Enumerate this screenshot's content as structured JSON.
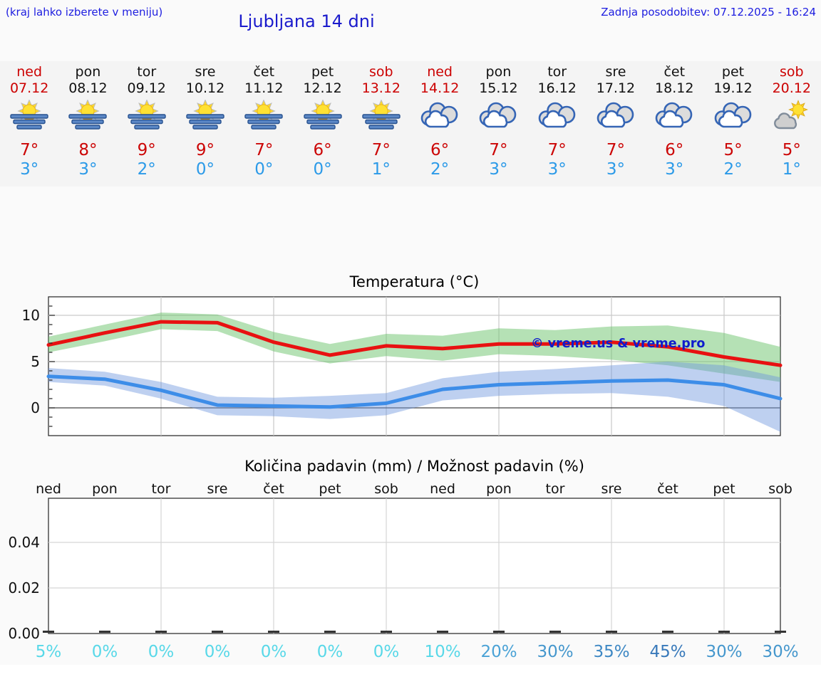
{
  "header": {
    "hint": "(kraj lahko izberete v meniju)",
    "title": "Ljubljana 14 dni",
    "updated": "Zadnja posodobitev: 07.12.2025 - 16:24"
  },
  "colors": {
    "weekend_red": "#cc0000",
    "weekday_black": "#111111",
    "high_temp": "#cc0606",
    "low_temp": "#2b9ae8",
    "watermark_blue": "#0f1ccc"
  },
  "days": [
    {
      "name": "ned",
      "date": "07.12",
      "icon": "sun-fog",
      "high": "7°",
      "low": "3°",
      "accent": "#cc0000"
    },
    {
      "name": "pon",
      "date": "08.12",
      "icon": "sun-fog",
      "high": "8°",
      "low": "3°",
      "accent": "#111111"
    },
    {
      "name": "tor",
      "date": "09.12",
      "icon": "sun-fog",
      "high": "9°",
      "low": "2°",
      "accent": "#111111"
    },
    {
      "name": "sre",
      "date": "10.12",
      "icon": "sun-fog",
      "high": "9°",
      "low": "0°",
      "accent": "#111111"
    },
    {
      "name": "čet",
      "date": "11.12",
      "icon": "sun-fog",
      "high": "7°",
      "low": "0°",
      "accent": "#111111"
    },
    {
      "name": "pet",
      "date": "12.12",
      "icon": "sun-fog",
      "high": "6°",
      "low": "0°",
      "accent": "#111111"
    },
    {
      "name": "sob",
      "date": "13.12",
      "icon": "sun-fog",
      "high": "7°",
      "low": "1°",
      "accent": "#cc0000"
    },
    {
      "name": "ned",
      "date": "14.12",
      "icon": "cloudy",
      "high": "6°",
      "low": "2°",
      "accent": "#cc0000"
    },
    {
      "name": "pon",
      "date": "15.12",
      "icon": "cloudy",
      "high": "7°",
      "low": "3°",
      "accent": "#111111"
    },
    {
      "name": "tor",
      "date": "16.12",
      "icon": "cloudy",
      "high": "7°",
      "low": "3°",
      "accent": "#111111"
    },
    {
      "name": "sre",
      "date": "17.12",
      "icon": "cloudy",
      "high": "7°",
      "low": "3°",
      "accent": "#111111"
    },
    {
      "name": "čet",
      "date": "18.12",
      "icon": "cloudy",
      "high": "6°",
      "low": "3°",
      "accent": "#111111"
    },
    {
      "name": "pet",
      "date": "19.12",
      "icon": "cloudy",
      "high": "5°",
      "low": "2°",
      "accent": "#111111"
    },
    {
      "name": "sob",
      "date": "20.12",
      "icon": "sun-cloud",
      "high": "5°",
      "low": "1°",
      "accent": "#cc0000"
    }
  ],
  "chart_data": [
    {
      "type": "line",
      "title": "Temperatura (°C)",
      "ylabel": "°C",
      "ylim": [
        -3,
        12
      ],
      "y_ticks": [
        0,
        5,
        10
      ],
      "x_count": 14,
      "grid_day_indexes": [
        3,
        5,
        7,
        9,
        11,
        13
      ],
      "legend_position": "none",
      "grid": true,
      "watermark": "© vreme.us & vreme.pro",
      "series": [
        {
          "name": "max-temperature",
          "line_color": "#e81111",
          "band_color": "#6cc46c",
          "values": [
            6.8,
            8.1,
            9.3,
            9.2,
            7.1,
            5.7,
            6.7,
            6.4,
            6.9,
            6.9,
            7.1,
            6.6,
            5.5,
            4.6
          ],
          "band_hi": [
            7.7,
            9.0,
            10.3,
            10.1,
            8.2,
            6.9,
            8.0,
            7.8,
            8.6,
            8.4,
            8.8,
            8.9,
            8.1,
            6.6
          ],
          "band_lo": [
            6.0,
            7.2,
            8.5,
            8.3,
            6.1,
            4.8,
            5.6,
            5.1,
            5.8,
            5.6,
            5.2,
            4.6,
            3.7,
            2.8
          ]
        },
        {
          "name": "min-temperature",
          "line_color": "#3d8de8",
          "band_color": "#6e96dd",
          "values": [
            3.4,
            3.1,
            1.9,
            0.3,
            0.2,
            0.1,
            0.5,
            2.0,
            2.5,
            2.7,
            2.9,
            3.0,
            2.5,
            1.0
          ],
          "band_hi": [
            4.3,
            3.9,
            2.8,
            1.2,
            1.1,
            1.3,
            1.6,
            3.2,
            3.9,
            4.2,
            4.6,
            5.0,
            4.6,
            3.3
          ],
          "band_lo": [
            2.8,
            2.4,
            1.0,
            -0.8,
            -0.9,
            -1.2,
            -0.8,
            0.8,
            1.3,
            1.5,
            1.6,
            1.2,
            0.2,
            -2.6
          ]
        }
      ]
    },
    {
      "type": "bar",
      "title": "Količina padavin (mm) / Možnost padavin (%)",
      "day_labels": [
        "ned",
        "pon",
        "tor",
        "sre",
        "čet",
        "pet",
        "sob",
        "ned",
        "pon",
        "tor",
        "sre",
        "čet",
        "pet",
        "sob"
      ],
      "y_tick_labels": [
        "0.00",
        "0.02",
        "0.04"
      ],
      "ylim": [
        0,
        0.059
      ],
      "grid": true,
      "values_mm": [
        0,
        0,
        0,
        0,
        0,
        0,
        0,
        0,
        0,
        0,
        0,
        0,
        0,
        0
      ],
      "percent_labels": [
        "5%",
        "0%",
        "0%",
        "0%",
        "0%",
        "0%",
        "0%",
        "10%",
        "20%",
        "30%",
        "35%",
        "45%",
        "30%",
        "30%"
      ],
      "percent_colors": [
        "#58d8e8",
        "#58d8e8",
        "#58d8e8",
        "#58d8e8",
        "#58d8e8",
        "#58d8e8",
        "#58d8e8",
        "#58d8e8",
        "#4aa2d6",
        "#4597cd",
        "#3e88c4",
        "#3879ba",
        "#4597cd",
        "#4597cd"
      ]
    }
  ]
}
